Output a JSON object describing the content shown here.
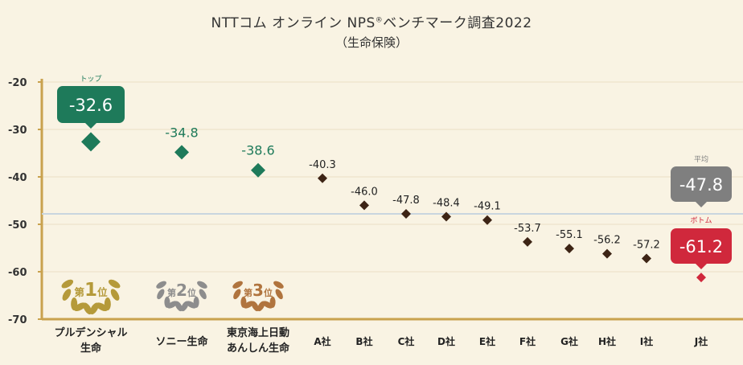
{
  "title": {
    "line1": "NTTコム オンライン NPS",
    "reg_mark": "®",
    "line1_suffix": "ベンチマーク調査2022",
    "line2": "（生命保険）"
  },
  "chart_data": {
    "type": "scatter",
    "categories": [
      "プルデンシャル生命",
      "ソニー生命",
      "東京海上日動あんしん生命",
      "A社",
      "B社",
      "C社",
      "D社",
      "E社",
      "F社",
      "G社",
      "H社",
      "I社",
      "J社"
    ],
    "category_lines": [
      [
        "プルデンシャル",
        "生命"
      ],
      [
        "ソニー生命"
      ],
      [
        "東京海上日動",
        "あんしん生命"
      ],
      [
        "A社"
      ],
      [
        "B社"
      ],
      [
        "C社"
      ],
      [
        "D社"
      ],
      [
        "E社"
      ],
      [
        "F社"
      ],
      [
        "G社"
      ],
      [
        "H社"
      ],
      [
        "I社"
      ],
      [
        "J社"
      ]
    ],
    "values": [
      -32.6,
      -34.8,
      -38.6,
      -40.3,
      -46.0,
      -47.8,
      -48.4,
      -49.1,
      -53.7,
      -55.1,
      -56.2,
      -57.2,
      -61.2
    ],
    "value_labels": [
      "-32.6",
      "-34.8",
      "-38.6",
      "-40.3",
      "-46.0",
      "-47.8",
      "-48.4",
      "-49.1",
      "-53.7",
      "-55.1",
      "-56.2",
      "-57.2",
      "-61.2"
    ],
    "ylim": [
      -70,
      -20
    ],
    "yticks": [
      -20,
      -30,
      -40,
      -50,
      -60,
      -70
    ],
    "grid": true,
    "average": {
      "label": "平均",
      "value": -47.8,
      "value_label": "-47.8"
    },
    "top_callout": {
      "label": "トップ",
      "value_label": "-32.6"
    },
    "bottom_callout": {
      "label": "ボトム",
      "value_label": "-61.2"
    },
    "rank_badges": [
      {
        "prefix": "第",
        "num": "1",
        "suffix": "位"
      },
      {
        "prefix": "第",
        "num": "2",
        "suffix": "位"
      },
      {
        "prefix": "第",
        "num": "3",
        "suffix": "位"
      }
    ],
    "colors": {
      "background": "#f9f3e3",
      "axis": "#c9a24e",
      "grid": "#eadfc4",
      "top": "#1e7a5a",
      "point": "#3d2415",
      "bottom": "#d0283c",
      "average": "#7f7f7f",
      "average_line": "#c9d6df",
      "gold": "#b59a3a",
      "silver": "#8d8d8d",
      "bronze": "#b0743e"
    }
  }
}
